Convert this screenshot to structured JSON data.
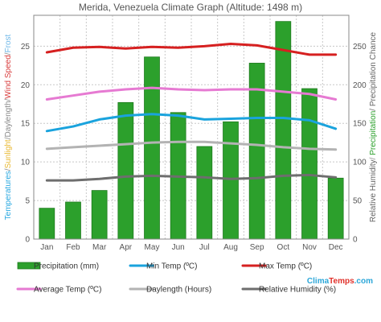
{
  "chart_data": {
    "type": "bar",
    "title": "Merida, Venezuela Climate Graph (Altitude: 1498 m)",
    "categories": [
      "Jan",
      "Feb",
      "Mar",
      "Apr",
      "May",
      "Jun",
      "Jul",
      "Aug",
      "Sep",
      "Oct",
      "Nov",
      "Dec"
    ],
    "left_axis": {
      "label_parts": [
        {
          "text": "Temperatures",
          "color": "#29a8e0"
        },
        {
          "text": "/",
          "color": "#888888"
        },
        {
          "text": "Sunlight",
          "color": "#e8b830"
        },
        {
          "text": "/",
          "color": "#888888"
        },
        {
          "text": "Daylength",
          "color": "#8a8a8a"
        },
        {
          "text": "/",
          "color": "#888888"
        },
        {
          "text": "Wind Speed",
          "color": "#d94040"
        },
        {
          "text": "/",
          "color": "#888888"
        },
        {
          "text": "Frost",
          "color": "#70b8e8"
        }
      ],
      "ylim": [
        0,
        29
      ],
      "ticks": [
        0,
        5,
        10,
        15,
        20,
        25
      ]
    },
    "right_axis": {
      "label_parts": [
        {
          "text": "Relative Humidity",
          "color": "#666666"
        },
        {
          "text": "/ ",
          "color": "#888888"
        },
        {
          "text": "Precipitation",
          "color": "#2ba02b"
        },
        {
          "text": "/ Precipitation Chance",
          "color": "#666666"
        }
      ],
      "ylim": [
        0,
        290
      ],
      "ticks": [
        0,
        50,
        100,
        150,
        200,
        250
      ]
    },
    "bars": {
      "name": "Precipitation (mm)",
      "color": "#2ca02c",
      "edge": "#1e7a1e",
      "values": [
        40,
        48,
        63,
        177,
        236,
        164,
        120,
        152,
        228,
        282,
        195,
        79
      ]
    },
    "lines": [
      {
        "name": "Min Temp (ºC)",
        "color": "#1aa3dd",
        "values": [
          14.0,
          14.6,
          15.5,
          16.0,
          16.2,
          16.0,
          15.5,
          15.6,
          15.7,
          15.7,
          15.4,
          14.3
        ]
      },
      {
        "name": "Max Temp (ºC)",
        "color": "#d62020",
        "values": [
          24.2,
          24.8,
          24.9,
          24.7,
          24.9,
          24.8,
          25.0,
          25.3,
          25.1,
          24.5,
          23.9,
          23.9
        ]
      },
      {
        "name": "Average Temp (ºC)",
        "color": "#e67ad2",
        "values": [
          18.1,
          18.6,
          19.1,
          19.4,
          19.6,
          19.4,
          19.3,
          19.4,
          19.4,
          19.1,
          18.8,
          18.1
        ]
      },
      {
        "name": "Daylength (Hours)",
        "color": "#b3b3b3",
        "values": [
          11.7,
          11.9,
          12.1,
          12.3,
          12.5,
          12.6,
          12.6,
          12.4,
          12.2,
          11.9,
          11.7,
          11.6
        ]
      },
      {
        "name": "Relative Humidity (%)",
        "color": "#6e6e6e",
        "axis": "right",
        "values": [
          76,
          76,
          78,
          81,
          82,
          81,
          80,
          78,
          79,
          82,
          83,
          80
        ]
      }
    ],
    "grid": true,
    "legend_position": "bottom"
  },
  "brand": {
    "clima": "Clima",
    "temps": "Temps",
    "domain": ".com"
  },
  "colors": {
    "grid": "#c8c8c8",
    "axis": "#888888",
    "plot_bg": "#ffffff"
  }
}
